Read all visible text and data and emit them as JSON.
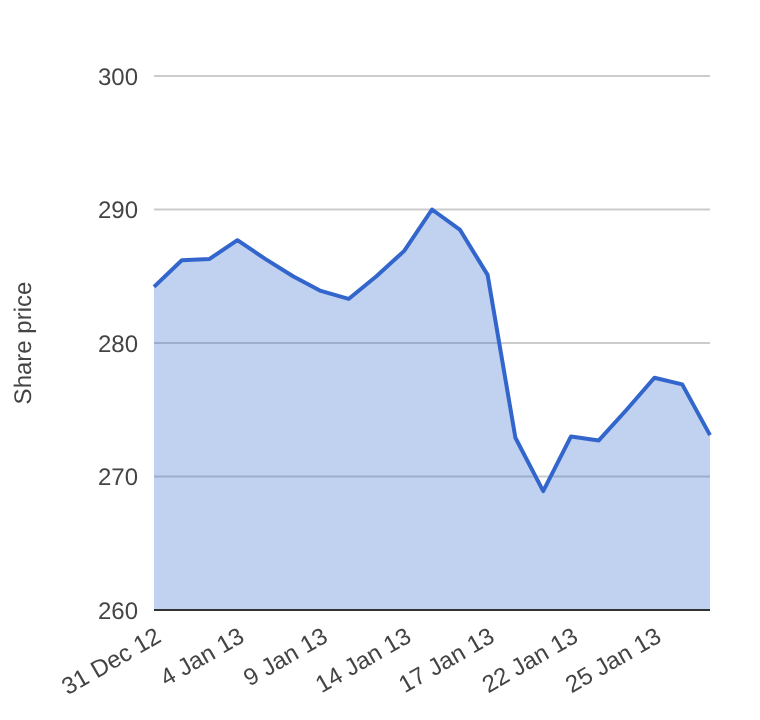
{
  "chart_data": {
    "type": "area",
    "ylabel": "Share price",
    "categories": [
      "31 Dec 12",
      null,
      null,
      "4 Jan 13",
      null,
      null,
      "9 Jan 13",
      null,
      null,
      "14 Jan 13",
      null,
      null,
      "17 Jan 13",
      null,
      null,
      "22 Jan 13",
      null,
      null,
      "25 Jan 13",
      null,
      null
    ],
    "series": [
      {
        "color": "#3366cc",
        "values": [
          284.2,
          286.2,
          286.3,
          287.7,
          286.3,
          285.0,
          283.9,
          283.3,
          285.0,
          286.9,
          290.0,
          288.5,
          285.1,
          272.9,
          268.9,
          273.0,
          272.7,
          275.0,
          277.4,
          276.9,
          273.1
        ]
      }
    ],
    "ylim": [
      260,
      300
    ],
    "yticks": [
      260,
      270,
      280,
      290,
      300
    ],
    "grid": "y",
    "legend": false,
    "marker": "none",
    "line_style": "solid"
  }
}
